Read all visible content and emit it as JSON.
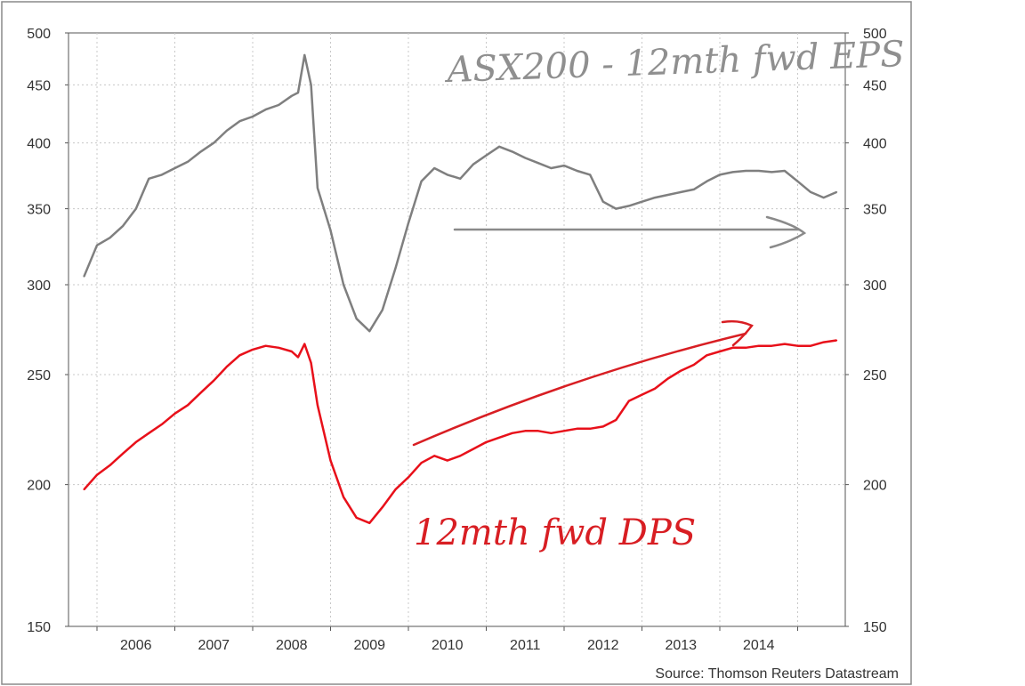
{
  "chart_data": {
    "type": "line",
    "y_scale": "log",
    "ylim": [
      150,
      500
    ],
    "y_ticks": [
      "150",
      "200",
      "250",
      "300",
      "350",
      "400",
      "450",
      "500"
    ],
    "x_tick_labels": [
      "2006",
      "2007",
      "2008",
      "2009",
      "2010",
      "2011",
      "2012",
      "2013",
      "2014"
    ],
    "grid": true,
    "source": "Source: Thomson Reuters Datastream",
    "annotations": {
      "eps_label": "ASX200 - 12mth fwd EPS",
      "dps_label": "12mth fwd DPS"
    },
    "series": [
      {
        "key": "eps",
        "color": "#7f7f7f",
        "x": [
          "2005-05",
          "2005-07",
          "2005-09",
          "2005-11",
          "2006-01",
          "2006-03",
          "2006-05",
          "2006-07",
          "2006-09",
          "2006-11",
          "2007-01",
          "2007-03",
          "2007-05",
          "2007-07",
          "2007-09",
          "2007-11",
          "2008-01",
          "2008-02",
          "2008-03",
          "2008-04",
          "2008-05",
          "2008-07",
          "2008-09",
          "2008-11",
          "2009-01",
          "2009-03",
          "2009-05",
          "2009-07",
          "2009-09",
          "2009-11",
          "2010-01",
          "2010-03",
          "2010-05",
          "2010-07",
          "2010-09",
          "2010-11",
          "2011-01",
          "2011-03",
          "2011-05",
          "2011-07",
          "2011-09",
          "2011-11",
          "2012-01",
          "2012-03",
          "2012-05",
          "2012-07",
          "2012-09",
          "2012-11",
          "2013-01",
          "2013-03",
          "2013-05",
          "2013-07",
          "2013-09",
          "2013-11",
          "2014-01",
          "2014-03",
          "2014-05",
          "2014-07",
          "2014-09",
          "2014-11",
          "2015-01"
        ],
        "values": [
          305,
          325,
          330,
          338,
          350,
          372,
          375,
          380,
          385,
          393,
          400,
          410,
          418,
          422,
          428,
          432,
          440,
          443,
          478,
          450,
          365,
          335,
          300,
          280,
          273,
          285,
          310,
          340,
          370,
          380,
          375,
          372,
          383,
          390,
          397,
          393,
          388,
          384,
          380,
          382,
          378,
          375,
          355,
          350,
          352,
          355,
          358,
          360,
          362,
          364,
          370,
          375,
          377,
          378,
          378,
          377,
          378,
          370,
          362,
          358,
          362
        ]
      },
      {
        "key": "dps",
        "color": "#e8101a",
        "x": [
          "2005-05",
          "2005-07",
          "2005-09",
          "2005-11",
          "2006-01",
          "2006-03",
          "2006-05",
          "2006-07",
          "2006-09",
          "2006-11",
          "2007-01",
          "2007-03",
          "2007-05",
          "2007-07",
          "2007-09",
          "2007-11",
          "2008-01",
          "2008-02",
          "2008-03",
          "2008-04",
          "2008-05",
          "2008-07",
          "2008-09",
          "2008-11",
          "2009-01",
          "2009-03",
          "2009-05",
          "2009-07",
          "2009-09",
          "2009-11",
          "2010-01",
          "2010-03",
          "2010-05",
          "2010-07",
          "2010-09",
          "2010-11",
          "2011-01",
          "2011-03",
          "2011-05",
          "2011-07",
          "2011-09",
          "2011-11",
          "2012-01",
          "2012-03",
          "2012-05",
          "2012-07",
          "2012-09",
          "2012-11",
          "2013-01",
          "2013-03",
          "2013-05",
          "2013-07",
          "2013-09",
          "2013-11",
          "2014-01",
          "2014-03",
          "2014-05",
          "2014-07",
          "2014-09",
          "2014-11",
          "2015-01"
        ],
        "values": [
          198,
          204,
          208,
          213,
          218,
          222,
          226,
          231,
          235,
          241,
          247,
          254,
          260,
          263,
          265,
          264,
          262,
          259,
          266,
          256,
          235,
          210,
          195,
          187,
          185,
          191,
          198,
          203,
          209,
          212,
          210,
          212,
          215,
          218,
          220,
          222,
          223,
          223,
          222,
          223,
          224,
          224,
          225,
          228,
          237,
          240,
          243,
          248,
          252,
          255,
          260,
          262,
          264,
          264,
          265,
          265,
          266,
          265,
          265,
          267,
          268
        ]
      }
    ]
  }
}
